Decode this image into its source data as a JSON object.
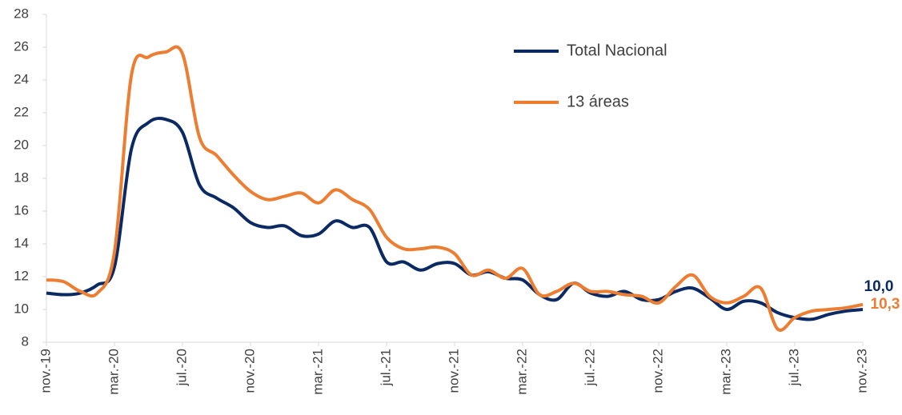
{
  "chart_data": {
    "type": "line",
    "categories": [
      "nov.-19",
      null,
      null,
      null,
      "mar.-20",
      null,
      null,
      null,
      "jul.-20",
      null,
      null,
      null,
      "nov.-20",
      null,
      null,
      null,
      "mar.-21",
      null,
      null,
      null,
      "jul.-21",
      null,
      null,
      null,
      "nov.-21",
      null,
      null,
      null,
      "mar.-22",
      null,
      null,
      null,
      "jul.-22",
      null,
      null,
      null,
      "nov.-22",
      null,
      null,
      null,
      "mar.-23",
      null,
      null,
      null,
      "jul.-23",
      null,
      null,
      null,
      "nov.-23"
    ],
    "series": [
      {
        "name": "Total Nacional",
        "color": "#0b2a63",
        "values": [
          11.0,
          10.9,
          11.0,
          11.5,
          12.6,
          19.8,
          21.4,
          21.6,
          20.8,
          17.6,
          16.8,
          16.2,
          15.3,
          15.0,
          15.1,
          14.5,
          14.6,
          15.4,
          15.0,
          15.0,
          12.9,
          12.9,
          12.4,
          12.8,
          12.8,
          12.1,
          12.3,
          11.9,
          11.8,
          10.9,
          10.6,
          11.6,
          11.0,
          10.8,
          11.1,
          10.6,
          10.6,
          11.1,
          11.3,
          10.7,
          10.0,
          10.5,
          10.4,
          9.8,
          9.5,
          9.4,
          9.7,
          9.9,
          10.0
        ],
        "value_labels": [
          null,
          null,
          null,
          null,
          null,
          null,
          null,
          null,
          null,
          null,
          null,
          null,
          null,
          null,
          null,
          null,
          null,
          null,
          null,
          null,
          null,
          null,
          null,
          null,
          null,
          null,
          null,
          null,
          null,
          null,
          null,
          null,
          null,
          null,
          null,
          null,
          null,
          null,
          null,
          null,
          null,
          null,
          null,
          null,
          null,
          null,
          null,
          null,
          "10,0"
        ]
      },
      {
        "name": "13 áreas",
        "color": "#ed7d31",
        "values": [
          11.8,
          11.7,
          11.1,
          11.0,
          13.5,
          24.3,
          25.4,
          25.7,
          25.6,
          20.5,
          19.4,
          18.2,
          17.2,
          16.7,
          16.9,
          17.1,
          16.5,
          17.3,
          16.7,
          16.1,
          14.4,
          13.7,
          13.7,
          13.8,
          13.4,
          12.1,
          12.4,
          11.9,
          12.5,
          10.9,
          11.1,
          11.6,
          11.1,
          11.1,
          10.9,
          10.8,
          10.4,
          11.4,
          12.1,
          10.8,
          10.4,
          10.8,
          11.3,
          8.8,
          9.5,
          9.9,
          10.0,
          10.1,
          10.3
        ],
        "value_labels": [
          null,
          null,
          null,
          null,
          null,
          null,
          null,
          null,
          null,
          null,
          null,
          null,
          null,
          null,
          null,
          null,
          null,
          null,
          null,
          null,
          null,
          null,
          null,
          null,
          null,
          null,
          null,
          null,
          null,
          null,
          null,
          null,
          null,
          null,
          null,
          null,
          null,
          null,
          null,
          null,
          null,
          null,
          null,
          null,
          null,
          null,
          null,
          null,
          "10,3"
        ]
      }
    ],
    "ylim": [
      8,
      28
    ],
    "yticks": [
      8,
      10,
      12,
      14,
      16,
      18,
      20,
      22,
      24,
      26,
      28
    ]
  }
}
